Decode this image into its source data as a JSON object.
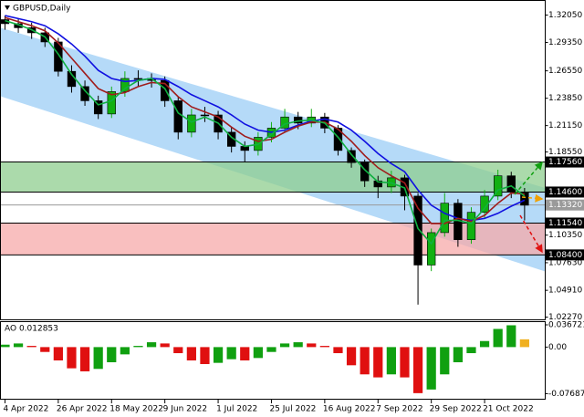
{
  "chart_data": {
    "type": "candlestick",
    "title": "GBPUSD,Daily",
    "xlim": [
      -0.34,
      40.55
    ],
    "xticks": [
      {
        "value": 0,
        "label": "4 Apr 2022"
      },
      {
        "value": 4,
        "label": "26 Apr 2022"
      },
      {
        "value": 8,
        "label": "18 May 2022"
      },
      {
        "value": 12,
        "label": "9 Jun 2022"
      },
      {
        "value": 16,
        "label": "1 Jul 2022"
      },
      {
        "value": 20,
        "label": "25 Jul 2022"
      },
      {
        "value": 24,
        "label": "16 Aug 2022"
      },
      {
        "value": 28,
        "label": "7 Sep 2022"
      },
      {
        "value": 32,
        "label": "29 Sep 2022"
      },
      {
        "value": 36,
        "label": "21 Oct 2022"
      }
    ],
    "ylim": [
      1.02,
      1.3349
    ],
    "yticks": [
      {
        "value": 1.3205,
        "label": "1.32050"
      },
      {
        "value": 1.2935,
        "label": "1.29350"
      },
      {
        "value": 1.2655,
        "label": "1.26550"
      },
      {
        "value": 1.2385,
        "label": "1.23850"
      },
      {
        "value": 1.2115,
        "label": "1.21150"
      },
      {
        "value": 1.1855,
        "label": "1.18550"
      },
      {
        "value": 1.1035,
        "label": "1.10350"
      },
      {
        "value": 1.0763,
        "label": "1.07630"
      },
      {
        "value": 1.0491,
        "label": "1.04910"
      },
      {
        "value": 1.0227,
        "label": "1.02270"
      }
    ],
    "channel": {
      "upper": [
        1.308,
        1.15
      ],
      "lower": [
        1.2404,
        1.0677
      ],
      "color": "#a8d4f7"
    },
    "zones": [
      {
        "range": [
          1.1756,
          1.146
        ],
        "color": "#8fce8f"
      },
      {
        "range": [
          1.1154,
          1.084
        ],
        "color": "#f7a9a9"
      }
    ],
    "levels": [
      {
        "value": 1.1756,
        "label": "1.17560",
        "color": "#000000"
      },
      {
        "value": 1.146,
        "label": "1.14600",
        "color": "#000000"
      },
      {
        "value": 1.1332,
        "label": "1.13320",
        "color": "#9a9a9a"
      },
      {
        "value": 1.1154,
        "label": "1.11540",
        "color": "#000000"
      },
      {
        "value": 1.084,
        "label": "1.08400",
        "color": "#000000"
      }
    ],
    "up_color": "#12b012",
    "down_color": "#000000",
    "candles": {
      "open": [
        1.316,
        1.312,
        1.308,
        1.303,
        1.294,
        1.265,
        1.25,
        1.236,
        1.223,
        1.245,
        1.258,
        1.258,
        1.256,
        1.236,
        1.205,
        1.222,
        1.222,
        1.205,
        1.191,
        1.187,
        1.2,
        1.209,
        1.22,
        1.214,
        1.22,
        1.209,
        1.187,
        1.175,
        1.157,
        1.151,
        1.16,
        1.142,
        1.074,
        1.106,
        1.135,
        1.099,
        1.126,
        1.142,
        1.162,
        1.146
      ],
      "high": [
        1.32,
        1.317,
        1.313,
        1.308,
        1.298,
        1.271,
        1.256,
        1.241,
        1.25,
        1.265,
        1.266,
        1.263,
        1.26,
        1.24,
        1.228,
        1.23,
        1.226,
        1.21,
        1.196,
        1.205,
        1.215,
        1.228,
        1.225,
        1.228,
        1.224,
        1.212,
        1.19,
        1.178,
        1.162,
        1.167,
        1.163,
        1.145,
        1.11,
        1.145,
        1.139,
        1.131,
        1.148,
        1.168,
        1.166,
        1.15
      ],
      "low": [
        1.306,
        1.303,
        1.297,
        1.289,
        1.26,
        1.244,
        1.231,
        1.218,
        1.219,
        1.24,
        1.25,
        1.249,
        1.23,
        1.198,
        1.2,
        1.215,
        1.198,
        1.185,
        1.176,
        1.182,
        1.195,
        1.205,
        1.208,
        1.21,
        1.204,
        1.182,
        1.17,
        1.151,
        1.14,
        1.145,
        1.128,
        1.035,
        1.068,
        1.102,
        1.092,
        1.095,
        1.12,
        1.138,
        1.14,
        1.118
      ],
      "close": [
        1.312,
        1.308,
        1.303,
        1.294,
        1.265,
        1.25,
        1.236,
        1.223,
        1.245,
        1.258,
        1.258,
        1.256,
        1.236,
        1.205,
        1.222,
        1.222,
        1.205,
        1.191,
        1.187,
        1.2,
        1.209,
        1.22,
        1.214,
        1.22,
        1.209,
        1.187,
        1.175,
        1.157,
        1.151,
        1.16,
        1.142,
        1.074,
        1.106,
        1.135,
        1.099,
        1.126,
        1.142,
        1.162,
        1.146,
        1.133
      ]
    },
    "moving_averages": [
      {
        "color": "#1010e0",
        "values": [
          1.32,
          1.317,
          1.314,
          1.31,
          1.302,
          1.292,
          1.28,
          1.266,
          1.258,
          1.255,
          1.256,
          1.258,
          1.257,
          1.25,
          1.242,
          1.236,
          1.23,
          1.222,
          1.213,
          1.207,
          1.205,
          1.207,
          1.212,
          1.216,
          1.218,
          1.215,
          1.207,
          1.196,
          1.184,
          1.174,
          1.166,
          1.148,
          1.133,
          1.125,
          1.12,
          1.118,
          1.12,
          1.125,
          1.132,
          1.138
        ]
      },
      {
        "color": "#a01c1c",
        "values": [
          1.318,
          1.314,
          1.31,
          1.305,
          1.293,
          1.278,
          1.263,
          1.248,
          1.242,
          1.244,
          1.25,
          1.254,
          1.253,
          1.24,
          1.23,
          1.225,
          1.22,
          1.21,
          1.201,
          1.196,
          1.198,
          1.205,
          1.211,
          1.215,
          1.215,
          1.208,
          1.196,
          1.182,
          1.17,
          1.162,
          1.155,
          1.13,
          1.115,
          1.115,
          1.12,
          1.117,
          1.123,
          1.135,
          1.145,
          1.144
        ]
      },
      {
        "color": "#10b040",
        "values": [
          1.315,
          1.311,
          1.306,
          1.299,
          1.282,
          1.262,
          1.246,
          1.232,
          1.236,
          1.248,
          1.256,
          1.258,
          1.248,
          1.224,
          1.215,
          1.22,
          1.214,
          1.2,
          1.191,
          1.193,
          1.203,
          1.213,
          1.216,
          1.217,
          1.214,
          1.2,
          1.183,
          1.168,
          1.156,
          1.155,
          1.15,
          1.11,
          1.095,
          1.118,
          1.118,
          1.115,
          1.13,
          1.148,
          1.152,
          1.142
        ]
      }
    ],
    "ao": {
      "title": "AO 0.012853",
      "ylim": [
        -0.086,
        0.042
      ],
      "yticks": [
        {
          "value": 0.036721,
          "label": "0.036721"
        },
        {
          "value": 0,
          "label": "0.00"
        },
        {
          "value": -0.076877,
          "label": "-0.076877"
        }
      ],
      "up_color": "#10a010",
      "down_color": "#e01010",
      "last_color": "#f0b020",
      "values": [
        0.004,
        0.006,
        0.002,
        -0.008,
        -0.022,
        -0.035,
        -0.04,
        -0.036,
        -0.025,
        -0.012,
        0.002,
        0.008,
        0.006,
        -0.01,
        -0.022,
        -0.028,
        -0.026,
        -0.02,
        -0.022,
        -0.018,
        -0.008,
        0.006,
        0.008,
        0.006,
        0.002,
        -0.01,
        -0.03,
        -0.045,
        -0.05,
        -0.045,
        -0.05,
        -0.076,
        -0.07,
        -0.045,
        -0.025,
        -0.01,
        0.01,
        0.03,
        0.036,
        0.012853
      ]
    }
  }
}
